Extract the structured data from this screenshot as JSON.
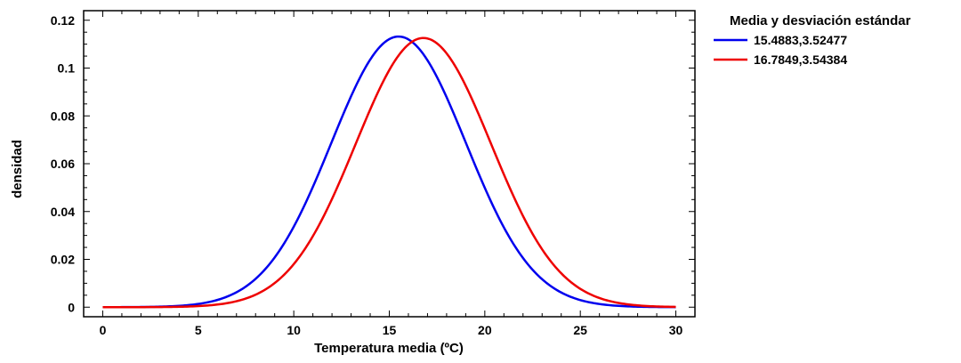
{
  "chart_data": {
    "type": "line",
    "title": "",
    "xlabel": "Temperatura media (ºC)",
    "ylabel": "densidad",
    "xlim": [
      -1,
      31
    ],
    "ylim": [
      -0.004,
      0.124
    ],
    "x_ticks": [
      0,
      5,
      10,
      15,
      20,
      25,
      30
    ],
    "x_tick_labels": [
      "0",
      "5",
      "10",
      "15",
      "20",
      "25",
      "30"
    ],
    "y_ticks": [
      0,
      0.02,
      0.04,
      0.06,
      0.08,
      0.1,
      0.12
    ],
    "y_tick_labels": [
      "0",
      "0.02",
      "0.04",
      "0.06",
      "0.08",
      "0.1",
      "0.12"
    ],
    "grid": false,
    "legend": {
      "title": "Media y desviación estándar",
      "placement": "outside-top-right"
    },
    "series": [
      {
        "name": "15.4883,3.52477",
        "color": "#0000ee",
        "mean": 15.4883,
        "sd": 3.52477,
        "x": [
          0,
          2,
          4,
          6,
          8,
          10,
          12,
          13,
          14,
          15,
          15.49,
          16,
          17,
          18,
          20,
          22,
          24,
          26,
          28,
          30
        ],
        "y": [
          0.0001,
          0.0008,
          0.0029,
          0.0081,
          0.0119,
          0.0333,
          0.0694,
          0.0883,
          0.1035,
          0.1122,
          0.1132,
          0.1122,
          0.1037,
          0.0878,
          0.0499,
          0.0204,
          0.0061,
          0.0013,
          0.0002,
          0.0
        ]
      },
      {
        "name": "16.7849,3.54384",
        "color": "#ee0000",
        "mean": 16.7849,
        "sd": 3.54384,
        "x": [
          0,
          2,
          4,
          6,
          8,
          10,
          12,
          14,
          15,
          16,
          16.78,
          17,
          18,
          20,
          22,
          24,
          26,
          28,
          30
        ],
        "y": [
          0.0,
          0.0002,
          0.0019,
          0.0068,
          0.0131,
          0.0228,
          0.0452,
          0.088,
          0.1016,
          0.1098,
          0.1126,
          0.1124,
          0.1066,
          0.0745,
          0.0382,
          0.0142,
          0.0039,
          0.0008,
          0.0001
        ]
      }
    ]
  }
}
